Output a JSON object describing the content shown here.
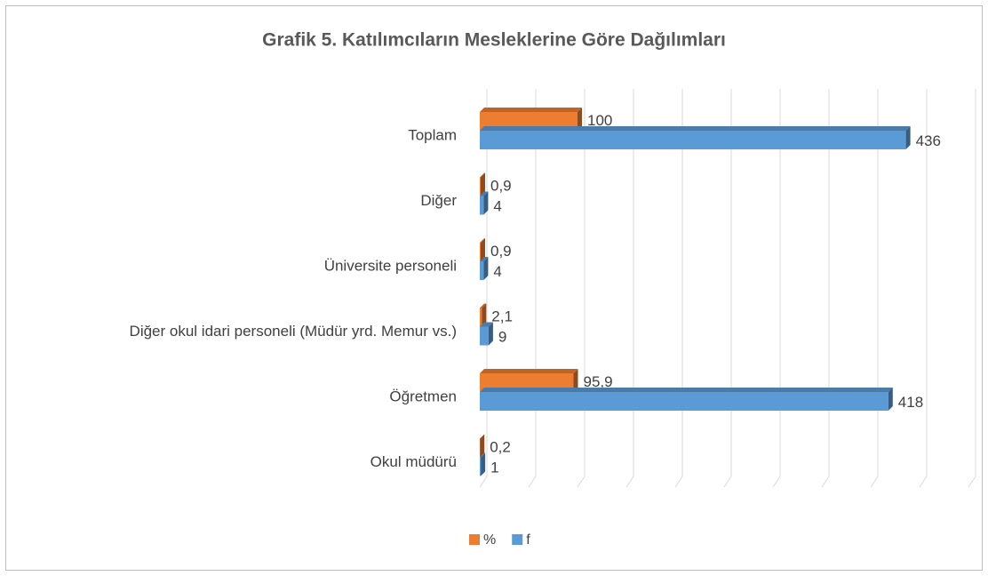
{
  "chart_data": {
    "type": "bar",
    "orientation": "horizontal",
    "title": "Grafik 5. Katılımcıların Mesleklerine Göre Dağılımları",
    "categories": [
      "Toplam",
      "Diğer",
      "Üniversite personeli",
      "Diğer okul idari personeli (Müdür yrd. Memur vs.)",
      "Öğretmen",
      "Okul müdürü"
    ],
    "series": [
      {
        "name": "%",
        "color": "#ed7d31",
        "values": [
          100,
          0.9,
          0.9,
          2.1,
          95.9,
          0.2
        ],
        "value_labels": [
          "100",
          "0,9",
          "0,9",
          "2,1",
          "95,9",
          "0,2"
        ]
      },
      {
        "name": "f",
        "color": "#5b9bd5",
        "values": [
          436,
          4,
          4,
          9,
          418,
          1
        ]
      }
    ],
    "xlim": [
      0,
      500
    ],
    "xticks": [
      0,
      50,
      100,
      150,
      200,
      250,
      300,
      350,
      400,
      450,
      500
    ],
    "grid": true,
    "legend": "bottom"
  }
}
